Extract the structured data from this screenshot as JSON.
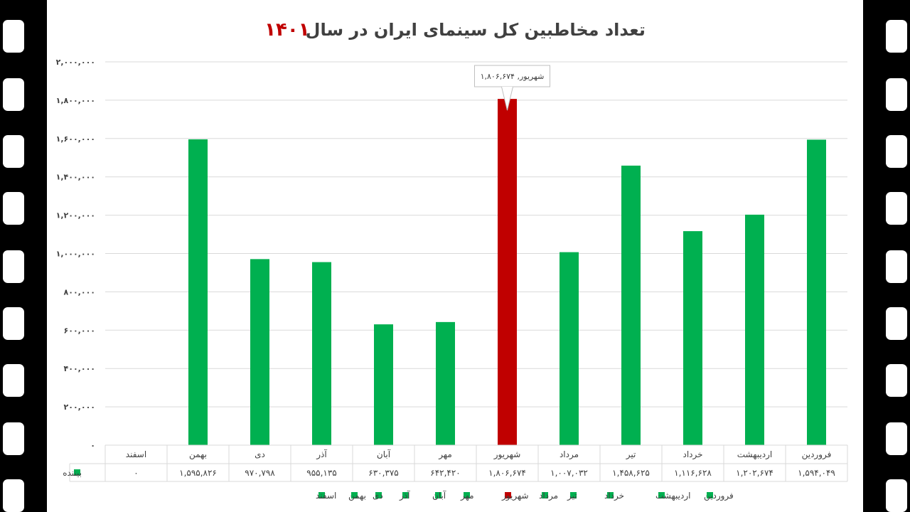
{
  "chart_data": {
    "type": "bar",
    "title": "تعداد مخاطبین کل سینمای ایران در سال",
    "title_year": "۱۴۰۱",
    "categories": [
      "فروردین",
      "اردیبهشت",
      "خرداد",
      "تیر",
      "مرداد",
      "شهریور",
      "مهر",
      "آبان",
      "آذر",
      "دی",
      "بهمن",
      "اسفند"
    ],
    "series": [
      {
        "name": "بیننده",
        "values": [
          1594049,
          1202674,
          1116628,
          1458625,
          1007032,
          1806674,
          642420,
          630375,
          955135,
          970798,
          1595826,
          0
        ]
      }
    ],
    "value_labels": [
      "۱,۵۹۴,۰۴۹",
      "۱,۲۰۲,۶۷۴",
      "۱,۱۱۶,۶۲۸",
      "۱,۴۵۸,۶۲۵",
      "۱,۰۰۷,۰۳۲",
      "۱,۸۰۶,۶۷۴",
      "۶۴۲,۴۲۰",
      "۶۳۰,۳۷۵",
      "۹۵۵,۱۳۵",
      "۹۷۰,۷۹۸",
      "۱,۵۹۵,۸۲۶",
      "۰"
    ],
    "highlight_index": 5,
    "ylim": [
      0,
      2000000
    ],
    "yticks": [
      0,
      200000,
      400000,
      600000,
      800000,
      1000000,
      1200000,
      1400000,
      1600000,
      1800000,
      2000000
    ],
    "ytick_labels": [
      "۰",
      "۲۰۰,۰۰۰",
      "۴۰۰,۰۰۰",
      "۶۰۰,۰۰۰",
      "۸۰۰,۰۰۰",
      "۱,۰۰۰,۰۰۰",
      "۱,۲۰۰,۰۰۰",
      "۱,۴۰۰,۰۰۰",
      "۱,۶۰۰,۰۰۰",
      "۱,۸۰۰,۰۰۰",
      "۲,۰۰۰,۰۰۰"
    ],
    "callout": "شهریور, ۱,۸۰۶,۶۷۴",
    "grid": true,
    "legend_position": "bottom",
    "data_table": true
  },
  "colors": {
    "bar": "#00b050",
    "highlight": "#c00000",
    "grid": "#d9d9d9",
    "text": "#404040"
  }
}
